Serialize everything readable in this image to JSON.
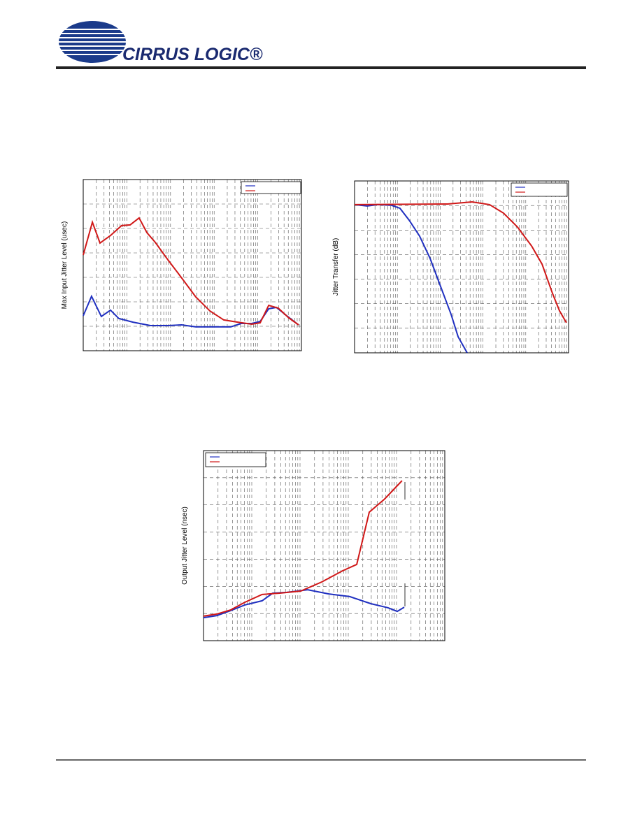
{
  "header": {
    "logo": "CIRRUS LOGIC®"
  },
  "chart_data": [
    {
      "type": "line",
      "y_label": "Max Input Jitter Level (usec)",
      "xlim": [
        0,
        100
      ],
      "ylim": [
        0,
        100
      ],
      "series": [
        {
          "color": "#2030c0",
          "x": [
            0,
            3.8,
            8.3,
            12.5,
            16.3,
            22.8,
            30.8,
            38.8,
            45.2,
            51.6,
            61.2,
            67.6,
            72.4,
            77.2,
            81.1,
            85,
            88.5,
            93.3,
            98.7
          ],
          "values": [
            20.4,
            31.8,
            20,
            23.7,
            18.8,
            16.7,
            14.7,
            14.7,
            15.1,
            13.9,
            13.9,
            13.9,
            15.9,
            15.9,
            17.1,
            24.5,
            25.3,
            20.4,
            15.1
          ]
        },
        {
          "color": "#d01818",
          "x": [
            0,
            4.2,
            7.7,
            12.5,
            17.6,
            21.5,
            25.6,
            29.2,
            33,
            38.8,
            45.2,
            51.6,
            58,
            64.4,
            70.8,
            77.2,
            81.1,
            85,
            89.4,
            94.2,
            98.7
          ],
          "values": [
            55.9,
            75.1,
            62.9,
            67.3,
            73.1,
            73.5,
            77.6,
            69,
            63.3,
            53.1,
            42.4,
            31.4,
            23.3,
            18,
            16.7,
            15.5,
            16.3,
            26.5,
            24.9,
            19.2,
            15.1
          ]
        }
      ]
    },
    {
      "type": "line",
      "y_label": "Jitter Transfer (dB)",
      "xlim": [
        0,
        100
      ],
      "ylim": [
        0,
        100
      ],
      "series": [
        {
          "color": "#2030c0",
          "x": [
            0,
            5.9,
            10.8,
            17.3,
            21.2,
            25.5,
            30.4,
            35.3,
            40.2,
            45.1,
            48.4,
            52.6
          ],
          "values": [
            86.2,
            85.4,
            86.2,
            85.8,
            84.1,
            77.2,
            67.9,
            54.9,
            38.6,
            22.4,
            9.3,
            0
          ]
        },
        {
          "color": "#d01818",
          "x": [
            0,
            43.5,
            54.9,
            63.1,
            69.6,
            76.1,
            82.7,
            87.6,
            92.5,
            95.8,
            99
          ],
          "values": [
            86.2,
            86.6,
            87.8,
            86.2,
            81.3,
            73.2,
            62.2,
            51.6,
            34.6,
            24.4,
            17.5
          ]
        }
      ]
    },
    {
      "type": "line",
      "y_label": "Output Jitter Level (nsec)",
      "xlim": [
        0,
        100
      ],
      "ylim": [
        0,
        100
      ],
      "series": [
        {
          "color": "#2030c0",
          "x": [
            0,
            5.5,
            11.3,
            17.1,
            24.3,
            28.7,
            34.5,
            43.2,
            51.9,
            60.6,
            69.3,
            76.5,
            80.3,
            83.2
          ],
          "values": [
            12.1,
            13.2,
            15.8,
            18.8,
            21,
            25,
            25.4,
            26.8,
            24.6,
            23.2,
            19.5,
            17.3,
            15.4,
            17.6
          ]
        },
        {
          "color": "#d01818",
          "x": [
            0,
            5.5,
            11.3,
            17.1,
            24.3,
            31.6,
            40.3,
            49,
            57.7,
            63.5,
            68.7,
            75.1,
            82.3
          ],
          "values": [
            12.9,
            14,
            16.2,
            20.2,
            24.3,
            25,
            26.1,
            30.9,
            36.8,
            40.1,
            67.6,
            74.6,
            84.2
          ]
        }
      ]
    }
  ]
}
